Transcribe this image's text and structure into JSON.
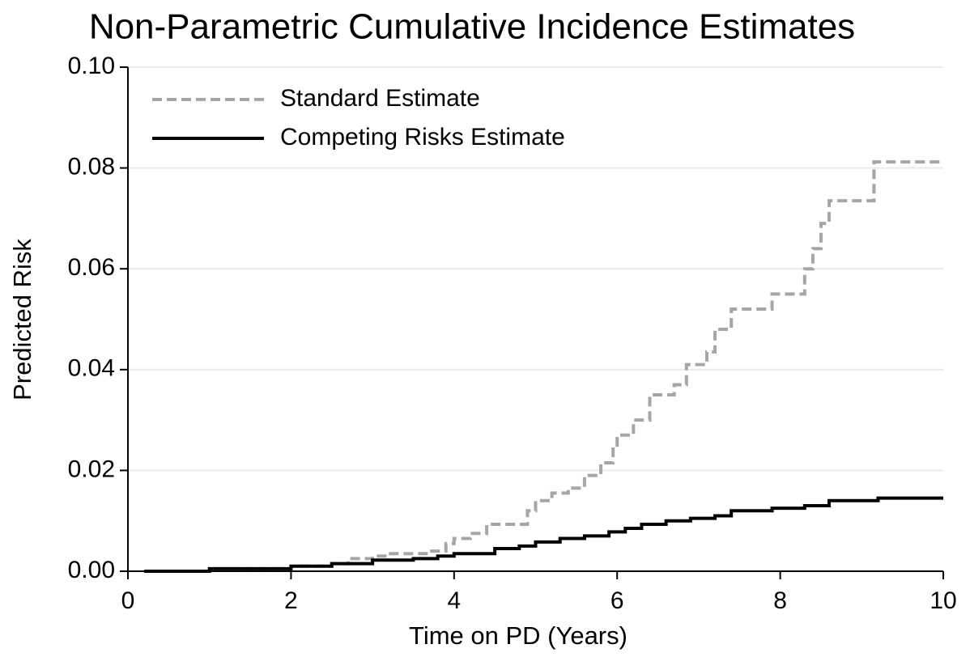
{
  "chart_data": {
    "type": "step",
    "title": "Non-Parametric Cumulative Incidence Estimates",
    "x_label": "Time on PD (Years)",
    "y_label": "Predicted Risk",
    "xlim": [
      0,
      10
    ],
    "xticks": [
      0,
      2,
      4,
      6,
      8,
      10
    ],
    "ylim": [
      0,
      0.1
    ],
    "yticks": [
      {
        "value": 0,
        "label": "0.00"
      },
      {
        "value": 0.02,
        "label": "0.02"
      },
      {
        "value": 0.04,
        "label": "0.04"
      },
      {
        "value": 0.06,
        "label": "0.06"
      },
      {
        "value": 0.08,
        "label": "0.08"
      },
      {
        "value": 0.1,
        "label": "0.10"
      }
    ],
    "grid": true,
    "legend_position": "upper-left",
    "series": [
      {
        "name": "Standard Estimate",
        "color": "#a6a6a6",
        "dash": true,
        "x": [
          0.2,
          1,
          2,
          2.5,
          2.7,
          3,
          3.2,
          3.7,
          3.9,
          4.0,
          4.2,
          4.4,
          4.9,
          5.0,
          5.2,
          5.4,
          5.6,
          5.8,
          5.95,
          6.0,
          6.2,
          6.4,
          6.7,
          6.85,
          7.1,
          7.2,
          7.4,
          7.9,
          8.3,
          8.4,
          8.5,
          8.6,
          9.15,
          10
        ],
        "values": [
          0,
          0.0005,
          0.001,
          0.0015,
          0.0025,
          0.003,
          0.0035,
          0.004,
          0.0055,
          0.0065,
          0.0075,
          0.0093,
          0.012,
          0.014,
          0.0155,
          0.0165,
          0.019,
          0.0215,
          0.025,
          0.027,
          0.03,
          0.035,
          0.037,
          0.041,
          0.0435,
          0.048,
          0.052,
          0.055,
          0.06,
          0.064,
          0.069,
          0.0735,
          0.0812,
          0.0812
        ]
      },
      {
        "name": "Competing Risks Estimate",
        "color": "#000000",
        "dash": false,
        "x": [
          0.2,
          1,
          2,
          2.5,
          3,
          3.5,
          3.8,
          4.0,
          4.5,
          4.8,
          5.0,
          5.3,
          5.6,
          5.9,
          6.1,
          6.3,
          6.6,
          6.9,
          7.2,
          7.4,
          7.9,
          8.3,
          8.6,
          9.2,
          10
        ],
        "values": [
          0,
          0.0005,
          0.001,
          0.0015,
          0.0022,
          0.0025,
          0.003,
          0.0035,
          0.0045,
          0.005,
          0.0058,
          0.0065,
          0.007,
          0.0078,
          0.0085,
          0.0093,
          0.01,
          0.0105,
          0.011,
          0.012,
          0.0125,
          0.013,
          0.014,
          0.0145,
          0.0145
        ]
      }
    ]
  }
}
